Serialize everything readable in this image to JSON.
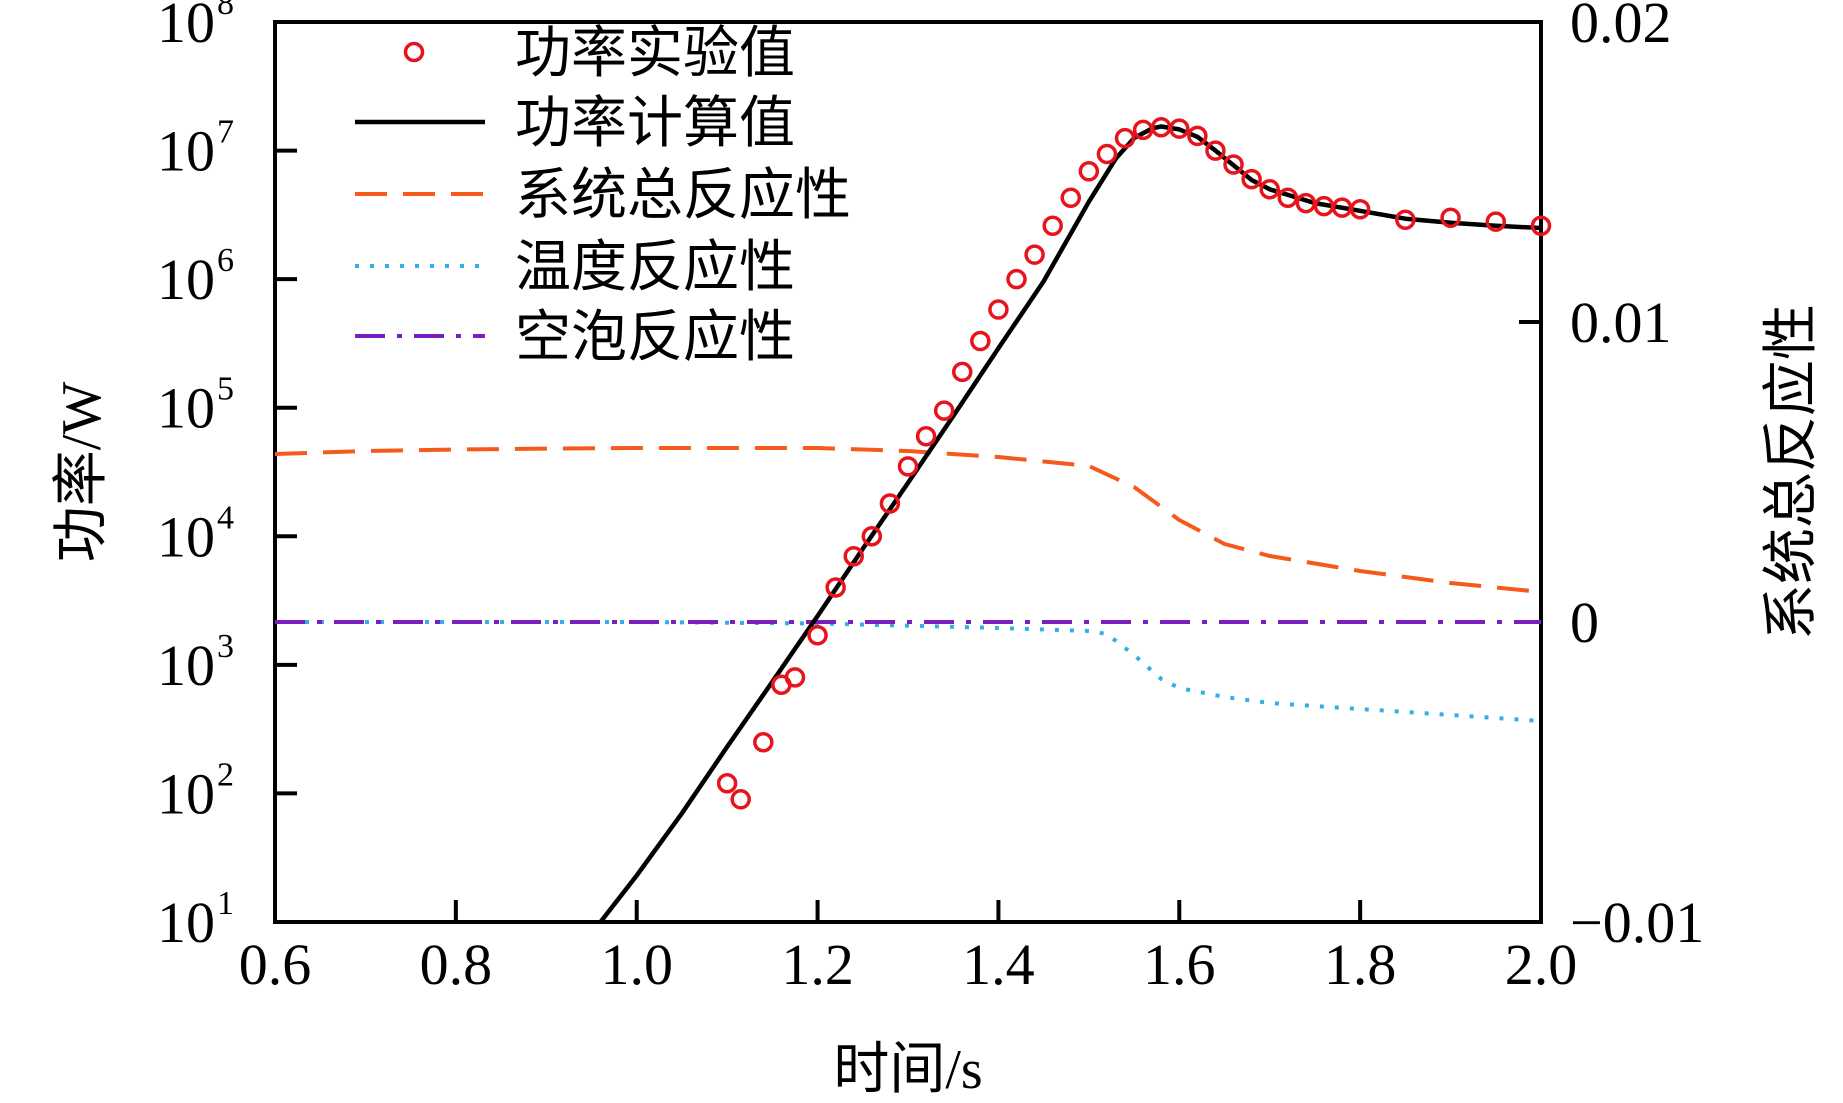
{
  "chart_data": {
    "type": "line",
    "xlabel": "时间/s",
    "ylabel_left": "功率/W",
    "ylabel_right": "系统总反应性",
    "xlim": [
      0.6,
      2.0
    ],
    "x_ticks": [
      "0.6",
      "0.8",
      "1.0",
      "1.2",
      "1.4",
      "1.6",
      "1.8",
      "2.0"
    ],
    "ylim_left": [
      10,
      100000000
    ],
    "y_left_scale": "log",
    "y_left_ticks": [
      {
        "base": "10",
        "exp": "1"
      },
      {
        "base": "10",
        "exp": "2"
      },
      {
        "base": "10",
        "exp": "3"
      },
      {
        "base": "10",
        "exp": "4"
      },
      {
        "base": "10",
        "exp": "5"
      },
      {
        "base": "10",
        "exp": "6"
      },
      {
        "base": "10",
        "exp": "7"
      },
      {
        "base": "10",
        "exp": "8"
      }
    ],
    "ylim_right": [
      -0.01,
      0.02
    ],
    "y_right_ticks": [
      "−0.01",
      "0",
      "0.01",
      "0.02"
    ],
    "legend_position": "top-left",
    "series": [
      {
        "name": "功率实验值",
        "axis": "left",
        "style": "markers",
        "color": "#e8141c",
        "x": [
          1.1,
          1.115,
          1.14,
          1.16,
          1.175,
          1.2,
          1.22,
          1.24,
          1.26,
          1.28,
          1.3,
          1.32,
          1.34,
          1.36,
          1.38,
          1.4,
          1.42,
          1.44,
          1.46,
          1.48,
          1.5,
          1.52,
          1.54,
          1.56,
          1.58,
          1.6,
          1.62,
          1.64,
          1.66,
          1.68,
          1.7,
          1.72,
          1.74,
          1.76,
          1.78,
          1.8,
          1.85,
          1.9,
          1.95,
          2.0
        ],
        "y": [
          120,
          90,
          250,
          700,
          800,
          1700,
          4000,
          7000,
          10000,
          18000,
          35000,
          60000,
          95000,
          190000,
          330000,
          580000,
          1000000,
          1550000,
          2600000,
          4300000,
          6900000,
          9400000,
          12500000,
          14500000,
          15200000,
          14800000,
          13000000,
          10000000,
          7800000,
          6000000,
          5000000,
          4300000,
          3900000,
          3700000,
          3600000,
          3500000,
          2900000,
          3000000,
          2800000,
          2600000
        ]
      },
      {
        "name": "功率计算值",
        "axis": "left",
        "style": "solid",
        "color": "#000000",
        "x": [
          0.96,
          1.0,
          1.05,
          1.1,
          1.15,
          1.2,
          1.25,
          1.3,
          1.35,
          1.4,
          1.45,
          1.5,
          1.53,
          1.55,
          1.57,
          1.58,
          1.6,
          1.62,
          1.64,
          1.66,
          1.68,
          1.7,
          1.75,
          1.8,
          1.85,
          1.9,
          1.95,
          2.0
        ],
        "y": [
          10,
          23,
          70,
          230,
          740,
          2400,
          8000,
          26000,
          86000,
          290000,
          960000,
          4000000,
          8700000,
          12500000,
          14900000,
          15400000,
          14600000,
          12800000,
          10000000,
          7700000,
          5900000,
          5000000,
          3900000,
          3400000,
          2950000,
          2750000,
          2600000,
          2500000
        ]
      },
      {
        "name": "系统总反应性",
        "axis": "right",
        "style": "dashed",
        "color": "#f55a1c",
        "x": [
          0.6,
          0.7,
          0.8,
          0.9,
          1.0,
          1.1,
          1.2,
          1.3,
          1.4,
          1.5,
          1.55,
          1.6,
          1.65,
          1.7,
          1.8,
          1.9,
          2.0
        ],
        "y": [
          0.0056,
          0.0057,
          0.00575,
          0.00578,
          0.0058,
          0.0058,
          0.0058,
          0.0057,
          0.0055,
          0.0052,
          0.0045,
          0.0034,
          0.0026,
          0.0022,
          0.0017,
          0.0013,
          0.001
        ]
      },
      {
        "name": "温度反应性",
        "axis": "right",
        "style": "dotted",
        "color": "#33aee8",
        "x": [
          0.6,
          0.8,
          1.0,
          1.2,
          1.4,
          1.5,
          1.52,
          1.55,
          1.58,
          1.6,
          1.65,
          1.7,
          1.8,
          1.9,
          2.0
        ],
        "y": [
          0.0,
          0.0,
          0.0,
          -5e-05,
          -0.0002,
          -0.0003,
          -0.0004,
          -0.0011,
          -0.0019,
          -0.0022,
          -0.0025,
          -0.0027,
          -0.0029,
          -0.0031,
          -0.0033
        ]
      },
      {
        "name": "空泡反应性",
        "axis": "right",
        "style": "dashdot",
        "color": "#7a1fbf",
        "x": [
          0.6,
          1.0,
          1.4,
          1.6,
          2.0
        ],
        "y": [
          0.0,
          0.0,
          0.0,
          0.0,
          0.0
        ]
      }
    ]
  }
}
